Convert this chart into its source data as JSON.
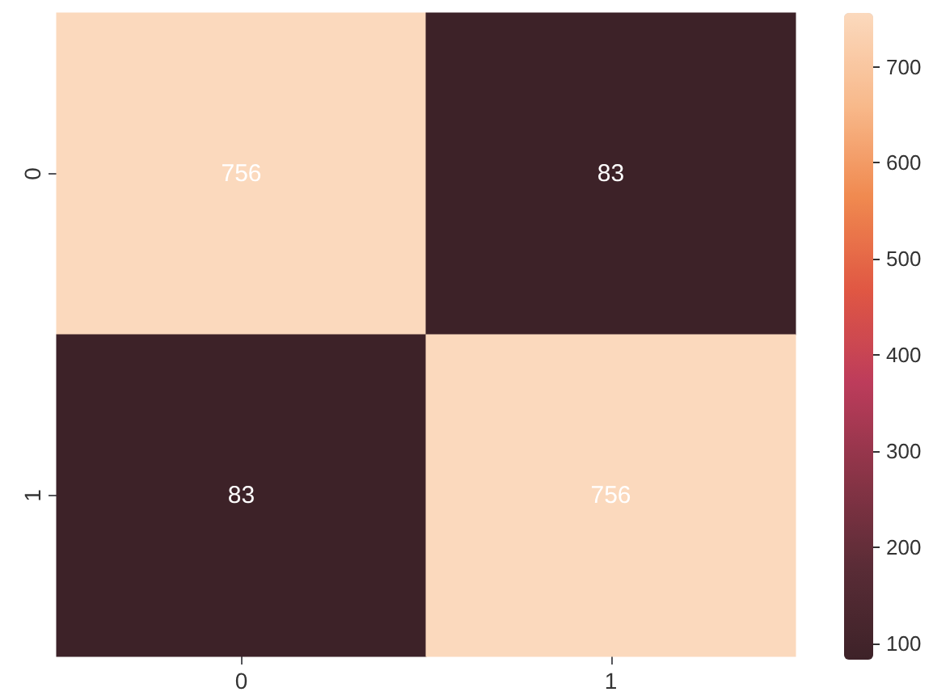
{
  "chart_data": {
    "type": "heatmap",
    "categories": [
      "0",
      "1"
    ],
    "y_categories": [
      "0",
      "1"
    ],
    "cells": [
      [
        756,
        83
      ],
      [
        83,
        756
      ]
    ],
    "data_labels": true,
    "clim": [
      83,
      756
    ],
    "cticks": [
      100,
      200,
      300,
      400,
      500,
      600,
      700
    ],
    "colors": [
      "#3d2228",
      "#5a2c36",
      "#8a3447",
      "#bd3c5b",
      "#e05743",
      "#f0894f",
      "#f8b98b",
      "#fbd9bd"
    ]
  }
}
